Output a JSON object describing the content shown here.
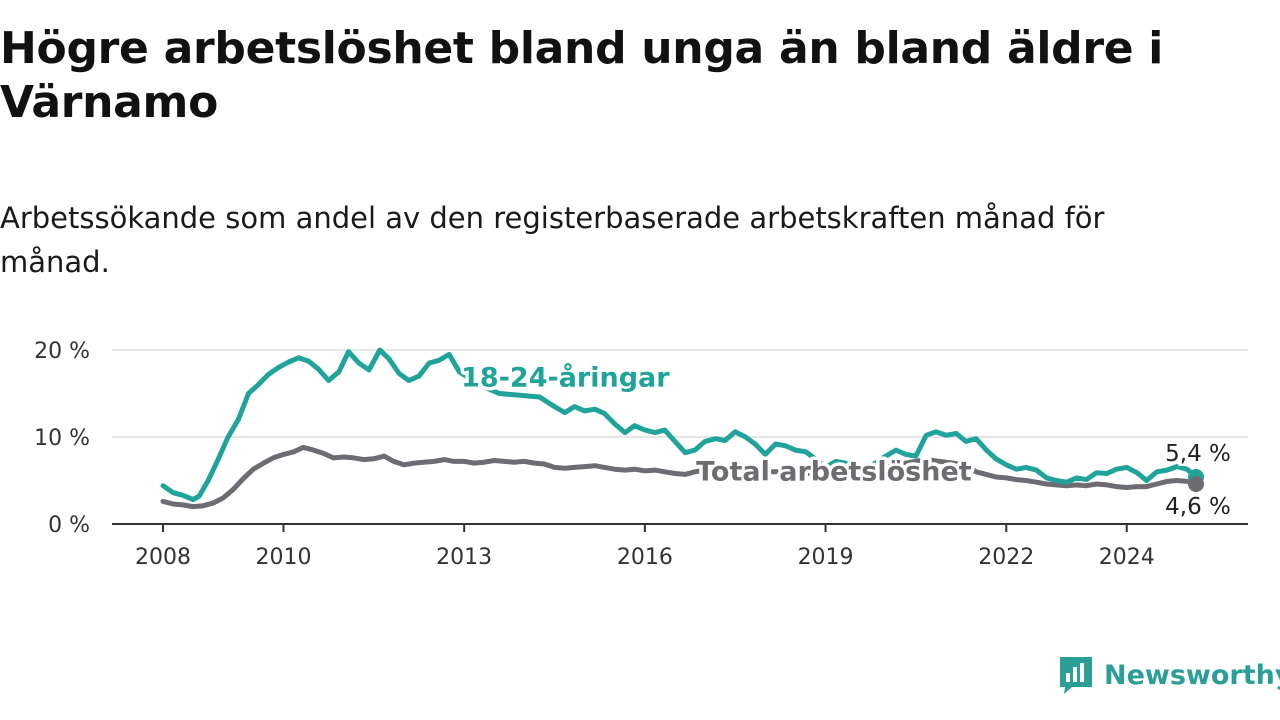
{
  "title": "Högre arbetslöshet bland unga än bland äldre i Värnamo",
  "subtitle": "Arbetssökande som andel av den registerbaserade arbetskraften månad för månad.",
  "logo": {
    "text": "Newsworthy",
    "icon": "bar-chart-speech-bubble-icon"
  },
  "colors": {
    "young": "#20a39a",
    "total": "#6e6b73",
    "axis": "#333333",
    "grid": "#dddddd",
    "logo": "#2b9e97"
  },
  "chart_data": {
    "type": "line",
    "title": "Högre arbetslöshet bland unga än bland äldre i Värnamo",
    "xlabel": "",
    "ylabel": "",
    "ylim": [
      0,
      20
    ],
    "xlim": [
      2008,
      2025.15
    ],
    "y_ticks": [
      0,
      10,
      20
    ],
    "y_tick_labels": [
      "0 %",
      "10 %",
      "20 %"
    ],
    "x_ticks": [
      2008,
      2010,
      2013,
      2016,
      2019,
      2022,
      2024
    ],
    "x_tick_labels": [
      "2008",
      "2010",
      "2013",
      "2016",
      "2019",
      "2022",
      "2024"
    ],
    "grid": "horizontal",
    "series": [
      {
        "name": "18-24-åringar",
        "key": "young",
        "end_label": "5,4 %",
        "points": [
          [
            2008.0,
            4.4
          ],
          [
            2008.17,
            3.6
          ],
          [
            2008.33,
            3.3
          ],
          [
            2008.5,
            2.8
          ],
          [
            2008.6,
            3.2
          ],
          [
            2008.75,
            5.0
          ],
          [
            2008.92,
            7.5
          ],
          [
            2009.08,
            10.0
          ],
          [
            2009.25,
            12.0
          ],
          [
            2009.42,
            15.0
          ],
          [
            2009.58,
            16.0
          ],
          [
            2009.75,
            17.2
          ],
          [
            2009.92,
            18.0
          ],
          [
            2010.08,
            18.6
          ],
          [
            2010.25,
            19.1
          ],
          [
            2010.42,
            18.7
          ],
          [
            2010.58,
            17.8
          ],
          [
            2010.75,
            16.5
          ],
          [
            2010.92,
            17.5
          ],
          [
            2011.08,
            19.8
          ],
          [
            2011.25,
            18.5
          ],
          [
            2011.42,
            17.7
          ],
          [
            2011.6,
            20.0
          ],
          [
            2011.75,
            19.0
          ],
          [
            2011.92,
            17.3
          ],
          [
            2012.08,
            16.5
          ],
          [
            2012.25,
            17.0
          ],
          [
            2012.42,
            18.5
          ],
          [
            2012.58,
            18.8
          ],
          [
            2012.75,
            19.5
          ],
          [
            2012.92,
            17.5
          ],
          [
            2013.25,
            16.0
          ],
          [
            2013.58,
            15.0
          ],
          [
            2013.92,
            14.8
          ],
          [
            2014.25,
            14.6
          ],
          [
            2014.5,
            13.5
          ],
          [
            2014.67,
            12.8
          ],
          [
            2014.83,
            13.5
          ],
          [
            2015.0,
            13.0
          ],
          [
            2015.17,
            13.2
          ],
          [
            2015.33,
            12.7
          ],
          [
            2015.5,
            11.5
          ],
          [
            2015.67,
            10.5
          ],
          [
            2015.83,
            11.3
          ],
          [
            2016.0,
            10.8
          ],
          [
            2016.17,
            10.5
          ],
          [
            2016.33,
            10.8
          ],
          [
            2016.5,
            9.5
          ],
          [
            2016.67,
            8.2
          ],
          [
            2016.83,
            8.5
          ],
          [
            2017.0,
            9.5
          ],
          [
            2017.17,
            9.8
          ],
          [
            2017.33,
            9.6
          ],
          [
            2017.5,
            10.6
          ],
          [
            2017.67,
            10.0
          ],
          [
            2017.83,
            9.2
          ],
          [
            2018.0,
            8.0
          ],
          [
            2018.17,
            9.2
          ],
          [
            2018.33,
            9.0
          ],
          [
            2018.5,
            8.5
          ],
          [
            2018.67,
            8.3
          ],
          [
            2018.83,
            7.5
          ],
          [
            2019.0,
            6.5
          ],
          [
            2019.17,
            7.2
          ],
          [
            2019.33,
            7.0
          ],
          [
            2019.5,
            6.8
          ],
          [
            2019.67,
            6.5
          ],
          [
            2019.83,
            7.0
          ],
          [
            2020.0,
            7.8
          ],
          [
            2020.17,
            8.5
          ],
          [
            2020.33,
            8.0
          ],
          [
            2020.5,
            7.8
          ],
          [
            2020.67,
            10.2
          ],
          [
            2020.83,
            10.6
          ],
          [
            2021.0,
            10.2
          ],
          [
            2021.17,
            10.4
          ],
          [
            2021.33,
            9.5
          ],
          [
            2021.5,
            9.8
          ],
          [
            2021.67,
            8.5
          ],
          [
            2021.83,
            7.5
          ],
          [
            2022.0,
            6.8
          ],
          [
            2022.17,
            6.3
          ],
          [
            2022.33,
            6.5
          ],
          [
            2022.5,
            6.2
          ],
          [
            2022.67,
            5.3
          ],
          [
            2022.83,
            5.0
          ],
          [
            2023.0,
            4.8
          ],
          [
            2023.17,
            5.3
          ],
          [
            2023.33,
            5.1
          ],
          [
            2023.5,
            5.9
          ],
          [
            2023.67,
            5.8
          ],
          [
            2023.83,
            6.3
          ],
          [
            2024.0,
            6.5
          ],
          [
            2024.17,
            5.9
          ],
          [
            2024.33,
            5.0
          ],
          [
            2024.5,
            6.0
          ],
          [
            2024.67,
            6.2
          ],
          [
            2024.83,
            6.6
          ],
          [
            2025.0,
            6.3
          ],
          [
            2025.15,
            5.4
          ]
        ]
      },
      {
        "name": "Total arbetslöshet",
        "key": "total",
        "end_label": "4,6 %",
        "points": [
          [
            2008.0,
            2.6
          ],
          [
            2008.17,
            2.3
          ],
          [
            2008.33,
            2.2
          ],
          [
            2008.5,
            2.0
          ],
          [
            2008.67,
            2.1
          ],
          [
            2008.83,
            2.4
          ],
          [
            2009.0,
            3.0
          ],
          [
            2009.17,
            4.0
          ],
          [
            2009.33,
            5.2
          ],
          [
            2009.5,
            6.3
          ],
          [
            2009.67,
            7.0
          ],
          [
            2009.83,
            7.6
          ],
          [
            2010.0,
            8.0
          ],
          [
            2010.17,
            8.3
          ],
          [
            2010.33,
            8.8
          ],
          [
            2010.5,
            8.5
          ],
          [
            2010.67,
            8.1
          ],
          [
            2010.83,
            7.6
          ],
          [
            2011.0,
            7.7
          ],
          [
            2011.17,
            7.6
          ],
          [
            2011.33,
            7.4
          ],
          [
            2011.5,
            7.5
          ],
          [
            2011.67,
            7.8
          ],
          [
            2011.83,
            7.2
          ],
          [
            2012.0,
            6.8
          ],
          [
            2012.17,
            7.0
          ],
          [
            2012.33,
            7.1
          ],
          [
            2012.5,
            7.2
          ],
          [
            2012.67,
            7.4
          ],
          [
            2012.83,
            7.2
          ],
          [
            2013.0,
            7.2
          ],
          [
            2013.17,
            7.0
          ],
          [
            2013.33,
            7.1
          ],
          [
            2013.5,
            7.3
          ],
          [
            2013.67,
            7.2
          ],
          [
            2013.83,
            7.1
          ],
          [
            2014.0,
            7.2
          ],
          [
            2014.17,
            7.0
          ],
          [
            2014.33,
            6.9
          ],
          [
            2014.5,
            6.5
          ],
          [
            2014.67,
            6.4
          ],
          [
            2014.83,
            6.5
          ],
          [
            2015.0,
            6.6
          ],
          [
            2015.17,
            6.7
          ],
          [
            2015.33,
            6.5
          ],
          [
            2015.5,
            6.3
          ],
          [
            2015.67,
            6.2
          ],
          [
            2015.83,
            6.3
          ],
          [
            2016.0,
            6.1
          ],
          [
            2016.17,
            6.2
          ],
          [
            2016.33,
            6.0
          ],
          [
            2016.5,
            5.8
          ],
          [
            2016.67,
            5.7
          ],
          [
            2016.83,
            6.0
          ],
          [
            2017.0,
            6.2
          ],
          [
            2017.33,
            6.1
          ],
          [
            2017.67,
            6.3
          ],
          [
            2018.0,
            6.0
          ],
          [
            2018.33,
            6.0
          ],
          [
            2018.67,
            5.8
          ],
          [
            2019.0,
            5.9
          ],
          [
            2019.33,
            6.1
          ],
          [
            2019.67,
            6.3
          ],
          [
            2020.0,
            6.6
          ],
          [
            2020.33,
            7.0
          ],
          [
            2020.67,
            7.4
          ],
          [
            2021.0,
            7.1
          ],
          [
            2021.33,
            6.8
          ],
          [
            2021.5,
            6.0
          ],
          [
            2021.67,
            5.7
          ],
          [
            2021.83,
            5.4
          ],
          [
            2022.0,
            5.3
          ],
          [
            2022.17,
            5.1
          ],
          [
            2022.33,
            5.0
          ],
          [
            2022.5,
            4.8
          ],
          [
            2022.67,
            4.6
          ],
          [
            2022.83,
            4.5
          ],
          [
            2023.0,
            4.4
          ],
          [
            2023.17,
            4.5
          ],
          [
            2023.33,
            4.4
          ],
          [
            2023.5,
            4.6
          ],
          [
            2023.67,
            4.5
          ],
          [
            2023.83,
            4.3
          ],
          [
            2024.0,
            4.2
          ],
          [
            2024.17,
            4.3
          ],
          [
            2024.33,
            4.3
          ],
          [
            2024.5,
            4.6
          ],
          [
            2024.67,
            4.9
          ],
          [
            2024.83,
            5.0
          ],
          [
            2025.0,
            4.9
          ],
          [
            2025.15,
            4.6
          ]
        ]
      }
    ],
    "annotations": [
      {
        "text": "18-24-åringar",
        "series": "young",
        "x": 2012.95,
        "y": 15.8
      },
      {
        "text": "Total arbetslöshet",
        "series": "total",
        "x": 2016.85,
        "y": 5.0
      }
    ]
  }
}
